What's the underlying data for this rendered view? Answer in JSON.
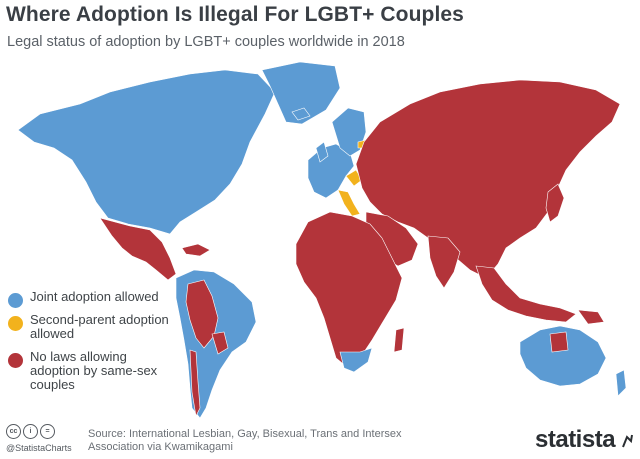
{
  "header": {
    "title": "Where Adoption Is Illegal For LGBT+ Couples",
    "subtitle": "Legal status of adoption by LGBT+ couples worldwide in 2018"
  },
  "colors": {
    "joint": "#5c9bd3",
    "second_parent": "#f2b21d",
    "none": "#b3343a",
    "ocean": "#ffffff"
  },
  "legend": {
    "items": [
      {
        "key": "joint",
        "label": "Joint adoption allowed"
      },
      {
        "key": "second_parent",
        "label": "Second-parent adoption allowed"
      },
      {
        "key": "none",
        "label": "No laws allowing adoption by same-sex couples"
      }
    ]
  },
  "footer": {
    "cc_icons": [
      "cc-icon",
      "attribution-icon",
      "equals-icon"
    ],
    "cc_glyphs": [
      "cc",
      "i",
      "="
    ],
    "handle": "@StatistaCharts",
    "source": "Source: International Lesbian, Gay, Bisexual, Trans and Intersex Association via Kwamikagami",
    "brand": "statista"
  }
}
